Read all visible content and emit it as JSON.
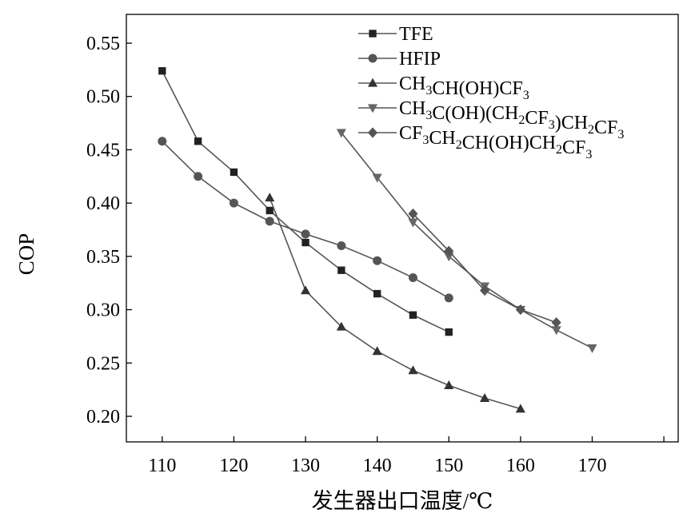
{
  "chart_data": {
    "type": "line",
    "xlabel": "发生器出口温度/℃",
    "ylabel": "COP",
    "xlim": [
      105,
      182
    ],
    "ylim": [
      0.176,
      0.577
    ],
    "x_ticks": [
      110,
      120,
      130,
      140,
      150,
      160,
      170
    ],
    "x_tick_labels": [
      "110",
      "120",
      "130",
      "140",
      "150",
      "160",
      "170"
    ],
    "y_ticks": [
      0.2,
      0.25,
      0.3,
      0.35,
      0.4,
      0.45,
      0.5,
      0.55
    ],
    "y_tick_labels": [
      "0.20",
      "0.25",
      "0.30",
      "0.35",
      "0.40",
      "0.45",
      "0.50",
      "0.55"
    ],
    "legend_position": "top-right",
    "line_color": "#555555",
    "series": [
      {
        "name": "TFE",
        "legend_parts": [
          {
            "t": "TFE"
          }
        ],
        "marker": "square",
        "color": "#222222",
        "x": [
          110,
          115,
          120,
          125,
          130,
          135,
          140,
          145,
          150
        ],
        "y": [
          0.524,
          0.458,
          0.429,
          0.393,
          0.363,
          0.337,
          0.315,
          0.295,
          0.279
        ]
      },
      {
        "name": "HFIP",
        "legend_parts": [
          {
            "t": "HFIP"
          }
        ],
        "marker": "circle",
        "color": "#555555",
        "x": [
          110,
          115,
          120,
          125,
          130,
          135,
          140,
          145,
          150
        ],
        "y": [
          0.458,
          0.425,
          0.4,
          0.383,
          0.371,
          0.36,
          0.346,
          0.33,
          0.311
        ]
      },
      {
        "name": "CH3CH(OH)CF3",
        "legend_parts": [
          {
            "t": "CH"
          },
          {
            "s": "3"
          },
          {
            "t": "CH(OH)CF"
          },
          {
            "s": "3"
          }
        ],
        "marker": "triangle-up",
        "color": "#333333",
        "x": [
          125,
          130,
          135,
          140,
          145,
          150,
          155,
          160
        ],
        "y": [
          0.405,
          0.318,
          0.284,
          0.261,
          0.243,
          0.229,
          0.217,
          0.207
        ]
      },
      {
        "name": "CH3C(OH)(CH2CF3)CH2CF3",
        "legend_parts": [
          {
            "t": "CH"
          },
          {
            "s": "3"
          },
          {
            "t": "C(OH)(CH"
          },
          {
            "s": "2"
          },
          {
            "t": "CF"
          },
          {
            "s": "3"
          },
          {
            "t": ")CH"
          },
          {
            "s": "2"
          },
          {
            "t": "CF"
          },
          {
            "s": "3"
          }
        ],
        "marker": "triangle-down",
        "color": "#666666",
        "x": [
          135,
          140,
          145,
          150,
          155,
          160,
          165,
          170
        ],
        "y": [
          0.466,
          0.424,
          0.382,
          0.35,
          0.322,
          0.3,
          0.281,
          0.264
        ]
      },
      {
        "name": "CF3CH2CH(OH)CH2CF3",
        "legend_parts": [
          {
            "t": "CF"
          },
          {
            "s": "3"
          },
          {
            "t": "CH"
          },
          {
            "s": "2"
          },
          {
            "t": "CH(OH)CH"
          },
          {
            "s": "2"
          },
          {
            "t": "CF"
          },
          {
            "s": "3"
          }
        ],
        "marker": "diamond",
        "color": "#555555",
        "x": [
          145,
          150,
          155,
          160,
          165
        ],
        "y": [
          0.39,
          0.355,
          0.318,
          0.3,
          0.288
        ]
      }
    ]
  }
}
